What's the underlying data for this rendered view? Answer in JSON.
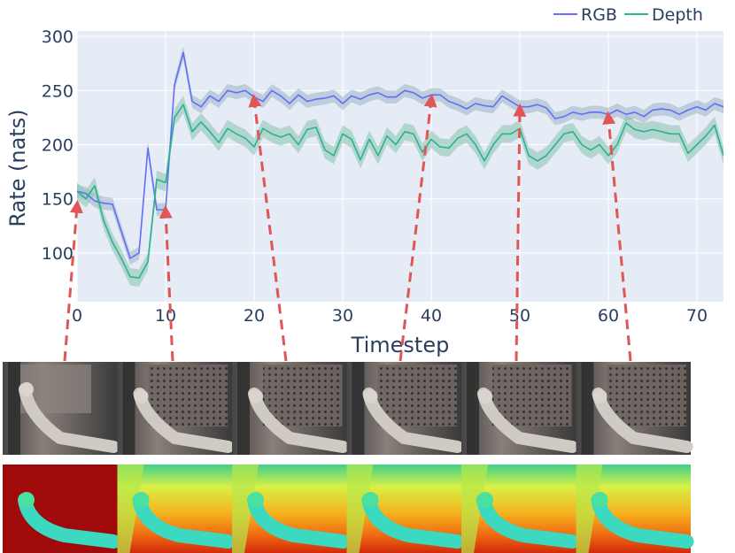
{
  "chart_data": {
    "type": "line",
    "title": "",
    "xlabel": "Timestep",
    "ylabel": "Rate (nats)",
    "xlim": [
      0,
      73
    ],
    "ylim": [
      55,
      305
    ],
    "xticks": [
      0,
      10,
      20,
      30,
      40,
      50,
      60,
      70
    ],
    "yticks": [
      100,
      150,
      200,
      250,
      300
    ],
    "x_tick_labels": [
      "0",
      "10",
      "20",
      "30",
      "40",
      "50",
      "60",
      "70"
    ],
    "y_tick_labels": [
      "100",
      "150",
      "200",
      "250",
      "300"
    ],
    "grid": true,
    "legend_position": "top-right",
    "series": [
      {
        "name": "RGB",
        "color": "#636efa",
        "band_color": "#9fb4c4",
        "band_half_width": 6,
        "x": [
          0,
          1,
          2,
          3,
          4,
          5,
          6,
          7,
          8,
          9,
          10,
          11,
          12,
          13,
          14,
          15,
          16,
          17,
          18,
          19,
          20,
          21,
          22,
          23,
          24,
          25,
          26,
          27,
          28,
          29,
          30,
          31,
          32,
          33,
          34,
          35,
          36,
          37,
          38,
          39,
          40,
          41,
          42,
          43,
          44,
          45,
          46,
          47,
          48,
          49,
          50,
          51,
          52,
          53,
          54,
          55,
          56,
          57,
          58,
          59,
          60,
          61,
          62,
          63,
          64,
          65,
          66,
          67,
          68,
          69,
          70,
          71,
          72,
          73
        ],
        "values": [
          157,
          155,
          148,
          146,
          145,
          120,
          95,
          100,
          197,
          140,
          140,
          255,
          285,
          240,
          235,
          245,
          240,
          250,
          248,
          250,
          244,
          240,
          250,
          245,
          238,
          246,
          240,
          242,
          243,
          245,
          238,
          245,
          242,
          246,
          248,
          244,
          244,
          250,
          248,
          243,
          246,
          246,
          240,
          237,
          233,
          238,
          236,
          235,
          245,
          240,
          235,
          235,
          237,
          234,
          224,
          226,
          230,
          228,
          230,
          230,
          228,
          232,
          228,
          230,
          226,
          232,
          233,
          232,
          228,
          232,
          235,
          232,
          238,
          235
        ]
      },
      {
        "name": "Depth",
        "color": "#2bb38a",
        "band_color": "#8bc2b0",
        "band_half_width": 8,
        "x": [
          0,
          1,
          2,
          3,
          4,
          5,
          6,
          7,
          8,
          9,
          10,
          11,
          12,
          13,
          14,
          15,
          16,
          17,
          18,
          19,
          20,
          21,
          22,
          23,
          24,
          25,
          26,
          27,
          28,
          29,
          30,
          31,
          32,
          33,
          34,
          35,
          36,
          37,
          38,
          39,
          40,
          41,
          42,
          43,
          44,
          45,
          46,
          47,
          48,
          49,
          50,
          51,
          52,
          53,
          54,
          55,
          56,
          57,
          58,
          59,
          60,
          61,
          62,
          63,
          64,
          65,
          66,
          67,
          68,
          69,
          70,
          71,
          72,
          73
        ],
        "values": [
          157,
          150,
          162,
          130,
          110,
          95,
          78,
          77,
          92,
          168,
          165,
          225,
          237,
          212,
          221,
          212,
          202,
          215,
          210,
          206,
          198,
          215,
          210,
          207,
          210,
          200,
          214,
          216,
          195,
          190,
          210,
          205,
          186,
          205,
          190,
          208,
          200,
          212,
          210,
          193,
          205,
          198,
          197,
          206,
          210,
          200,
          185,
          200,
          210,
          210,
          215,
          190,
          185,
          190,
          200,
          210,
          212,
          200,
          195,
          200,
          190,
          200,
          220,
          214,
          212,
          214,
          212,
          210,
          210,
          192,
          200,
          208,
          218,
          190
        ]
      }
    ]
  },
  "arrows": {
    "color": "#e05555",
    "timesteps": [
      0,
      10,
      20,
      40,
      50,
      60
    ]
  },
  "thumbnails": {
    "rgb_frame_count": 6,
    "depth_frame_count": 6
  }
}
